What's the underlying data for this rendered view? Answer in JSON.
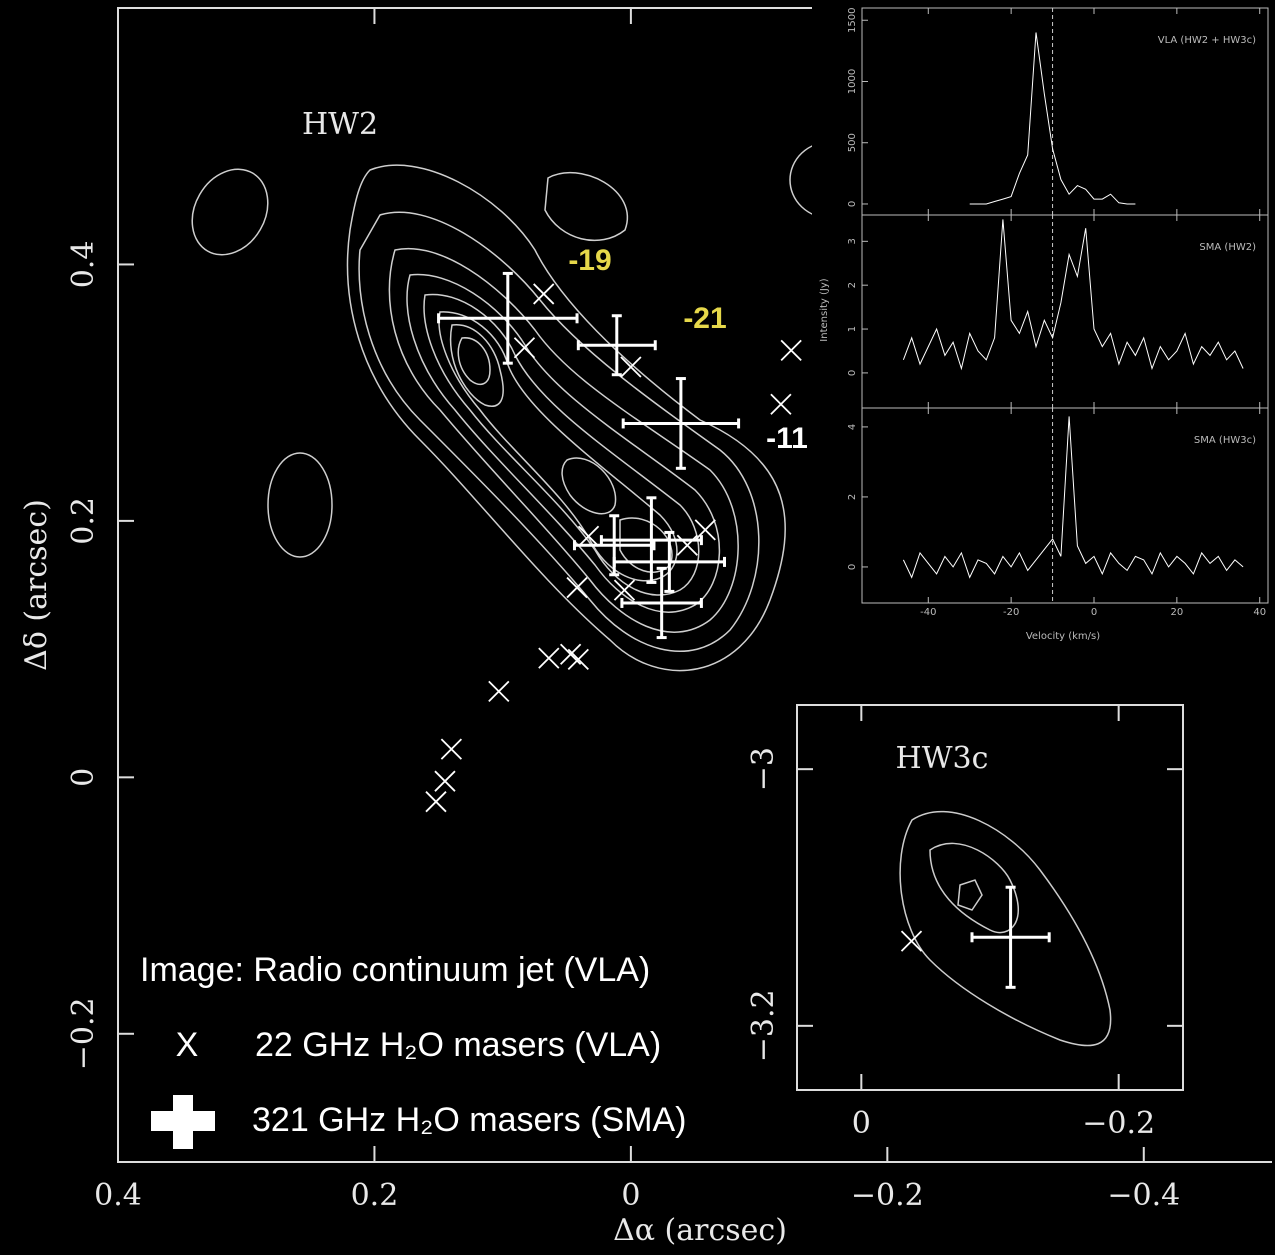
{
  "chart_data": [
    {
      "type": "scatter",
      "xlabel": "Δα (arcsec)",
      "ylabel": "Δδ (arcsec)",
      "xlim": [
        0.4,
        -0.5
      ],
      "ylim": [
        -0.3,
        0.6
      ],
      "xticks": [
        0.4,
        0.2,
        0,
        {
          "value": -0.2,
          "label": "−0.2"
        },
        {
          "value": -0.4,
          "label": "−0.4"
        }
      ],
      "yticks": [
        {
          "value": -0.2,
          "label": "−0.2"
        },
        0,
        0.2,
        0.4
      ],
      "source_label": "HW2",
      "note": "Image:  Radio continuum jet (VLA)",
      "annotations": [
        {
          "text": "-19",
          "color": "#e6d84a"
        },
        {
          "text": "-21",
          "color": "#e6d84a"
        },
        {
          "text": "-11",
          "color": "#ffffff"
        }
      ],
      "series": [
        {
          "name": "22 GHz H₂O masers (VLA)",
          "marker_label": "X",
          "color": "#ffffff",
          "x": [
            0.068,
            0.083,
            0.0,
            -0.125,
            -0.117,
            0.033,
            0.042,
            0.005,
            -0.058,
            -0.044,
            0.064,
            0.047,
            0.041,
            0.103,
            0.14,
            0.145,
            0.152
          ],
          "y": [
            0.377,
            0.335,
            0.32,
            0.333,
            0.291,
            0.188,
            0.148,
            0.146,
            0.193,
            0.181,
            0.093,
            0.096,
            0.092,
            0.067,
            0.022,
            -0.003,
            -0.019
          ]
        },
        {
          "name": "321 GHz H₂O masers (SMA)",
          "color": "#ffffff",
          "x": [
            0.096,
            0.011,
            -0.039,
            0.013,
            -0.016,
            -0.03,
            -0.024
          ],
          "y": [
            0.358,
            0.337,
            0.276,
            0.181,
            0.185,
            0.168,
            0.136
          ],
          "xerr": [
            0.054,
            0.03,
            0.045,
            0.031,
            0.039,
            0.043,
            0.031
          ],
          "yerr": [
            0.035,
            0.023,
            0.035,
            0.023,
            0.033,
            0.023,
            0.027
          ]
        }
      ]
    },
    {
      "type": "line",
      "title": "VLA (HW2 + HW3c)",
      "color": "#ffffff",
      "x": [
        -46,
        -44,
        -42,
        -40,
        -38,
        -36,
        -34,
        -32,
        -30,
        -28,
        -26,
        -24,
        -22,
        -20,
        -18,
        -16,
        -14,
        -12,
        -10,
        -8,
        -6,
        -4,
        -2,
        0,
        2,
        4,
        6,
        8,
        10,
        12,
        14,
        16,
        18,
        20,
        22,
        24,
        26,
        28,
        30,
        32,
        34,
        36
      ],
      "values": [
        null,
        null,
        null,
        null,
        null,
        null,
        null,
        null,
        0,
        0,
        0,
        20,
        40,
        60,
        250,
        400,
        1400,
        900,
        450,
        200,
        80,
        150,
        120,
        40,
        40,
        80,
        10,
        0,
        0,
        null,
        null,
        null,
        null,
        null,
        null,
        null,
        null,
        null,
        null,
        null,
        null,
        null
      ],
      "xlim": [
        -56,
        42
      ],
      "ylim": [
        -90,
        1600
      ],
      "xticks": [
        -40,
        -20,
        0,
        20,
        40
      ],
      "yticks": [
        0,
        500,
        1000,
        1500
      ],
      "vline": -10
    },
    {
      "type": "line",
      "title": "SMA (HW2)",
      "ylabel": "Intensity (Jy)",
      "color": "#ffffff",
      "x": [
        -46,
        -44,
        -42,
        -40,
        -38,
        -36,
        -34,
        -32,
        -30,
        -28,
        -26,
        -24,
        -22,
        -20,
        -18,
        -16,
        -14,
        -12,
        -10,
        -8,
        -6,
        -4,
        -2,
        0,
        2,
        4,
        6,
        8,
        10,
        12,
        14,
        16,
        18,
        20,
        22,
        24,
        26,
        28,
        30,
        32,
        34,
        36
      ],
      "values": [
        0.3,
        0.8,
        0.2,
        0.6,
        1.0,
        0.4,
        0.7,
        0.1,
        0.9,
        0.5,
        0.3,
        0.8,
        3.5,
        1.2,
        0.9,
        1.4,
        0.6,
        1.2,
        0.8,
        1.6,
        2.7,
        2.2,
        3.3,
        1.0,
        0.6,
        0.9,
        0.2,
        0.7,
        0.4,
        0.8,
        0.1,
        0.6,
        0.3,
        0.5,
        0.9,
        0.2,
        0.6,
        0.4,
        0.7,
        0.3,
        0.5,
        0.1
      ],
      "xlim": [
        -56,
        42
      ],
      "ylim": [
        -0.8,
        3.6
      ],
      "xticks": [
        -40,
        -20,
        0,
        20,
        40
      ],
      "yticks": [
        0,
        1,
        2,
        3
      ],
      "vline": -10
    },
    {
      "type": "line",
      "title": "SMA (HW3c)",
      "xlabel": "Velocity (km/s)",
      "color": "#ffffff",
      "x": [
        -46,
        -44,
        -42,
        -40,
        -38,
        -36,
        -34,
        -32,
        -30,
        -28,
        -26,
        -24,
        -22,
        -20,
        -18,
        -16,
        -14,
        -12,
        -10,
        -8,
        -6,
        -4,
        -2,
        0,
        2,
        4,
        6,
        8,
        10,
        12,
        14,
        16,
        18,
        20,
        22,
        24,
        26,
        28,
        30,
        32,
        34,
        36
      ],
      "values": [
        0.2,
        -0.3,
        0.4,
        0.1,
        -0.2,
        0.3,
        0.0,
        0.4,
        -0.3,
        0.2,
        0.1,
        -0.2,
        0.3,
        0.0,
        0.4,
        -0.1,
        0.2,
        0.5,
        0.8,
        0.3,
        4.3,
        0.6,
        0.1,
        0.3,
        -0.2,
        0.4,
        0.1,
        -0.1,
        0.3,
        0.2,
        -0.2,
        0.4,
        0.0,
        0.3,
        0.1,
        -0.2,
        0.4,
        0.1,
        0.3,
        -0.1,
        0.2,
        0.0
      ],
      "xlim": [
        -56,
        42
      ],
      "ylim": [
        -1.03,
        4.54
      ],
      "xticks": [
        -40,
        -20,
        0,
        20,
        40
      ],
      "yticks": [
        0,
        2,
        4
      ],
      "vline": -10
    },
    {
      "type": "scatter",
      "source_label": "HW3c",
      "xlim": [
        0.05,
        -0.25
      ],
      "ylim": [
        -3.25,
        -2.95
      ],
      "xticks": [
        0,
        {
          "value": -0.2,
          "label": "−0.2"
        }
      ],
      "yticks": [
        {
          "value": -3.2,
          "label": "−3.2"
        },
        {
          "value": -3,
          "label": "−3"
        }
      ],
      "series": [
        {
          "color": "#ffffff",
          "x": [
            -0.039
          ],
          "y": [
            -3.134
          ]
        },
        {
          "color": "#ffffff",
          "x": [
            -0.116
          ],
          "y": [
            -3.131
          ],
          "xerr": [
            0.03
          ],
          "yerr": [
            0.039
          ]
        }
      ]
    }
  ]
}
